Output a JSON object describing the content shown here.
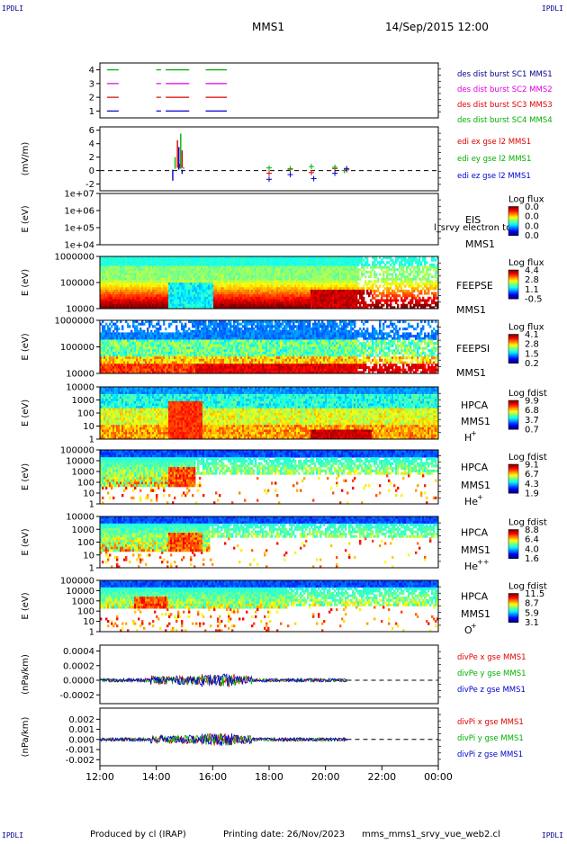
{
  "header": {
    "corner_label": "IPDLI",
    "spacecraft": "MMS1",
    "datetime": "14/Sep/2015 12:00"
  },
  "footer": {
    "produced_by": "Produced by cl (IRAP)",
    "printing_date": "Printing date: 26/Nov/2023",
    "script_name": "mms_mms1_srvy_vue_web2.cl"
  },
  "colors": {
    "red": "#e00000",
    "green": "#00b000",
    "magenta": "#e000e0",
    "blue": "#0000d0",
    "legend_dark_blue": "#00008b"
  },
  "chart_data": {
    "type": "multi-panel time series",
    "x_ticks": [
      "12:00",
      "14:00",
      "16:00",
      "18:00",
      "20:00",
      "22:00",
      "00:00"
    ],
    "xlim": [
      "12:00",
      "00:00"
    ],
    "panels": [
      {
        "id": "burst",
        "type": "timeline",
        "yticks": [
          "4",
          "3",
          "2",
          "1"
        ],
        "ylim": [
          0.5,
          4.5
        ],
        "series": [
          {
            "name": "des dist burst SC1 MMS1",
            "row": 1,
            "color_key": "blue",
            "intervals": [
              [
                "12:15",
                "12:40"
              ],
              [
                "14:00",
                "14:10"
              ],
              [
                "14:20",
                "15:10"
              ],
              [
                "15:45",
                "16:30"
              ]
            ]
          },
          {
            "name": "des dist burst SC2 MMS2",
            "row": 3,
            "color_key": "magenta",
            "intervals": [
              [
                "12:15",
                "12:40"
              ],
              [
                "14:00",
                "14:10"
              ],
              [
                "14:20",
                "15:10"
              ],
              [
                "15:45",
                "16:30"
              ]
            ]
          },
          {
            "name": "des dist burst SC3 MMS3",
            "row": 2,
            "color_key": "red",
            "intervals": [
              [
                "12:15",
                "12:40"
              ],
              [
                "14:00",
                "14:10"
              ],
              [
                "14:20",
                "15:10"
              ],
              [
                "15:45",
                "16:30"
              ]
            ]
          },
          {
            "name": "des dist burst SC4 MMS4",
            "row": 4,
            "color_key": "green",
            "intervals": [
              [
                "12:15",
                "12:40"
              ],
              [
                "14:00",
                "14:10"
              ],
              [
                "14:20",
                "15:10"
              ],
              [
                "15:45",
                "16:30"
              ]
            ]
          }
        ],
        "legend_order": [
          "des dist burst SC1 MMS1",
          "des dist burst SC2 MMS2",
          "des dist burst SC3 MMS3",
          "des dist burst SC4 MMS4"
        ],
        "legend_colors": [
          "legend_dark_blue",
          "magenta",
          "red",
          "green"
        ]
      },
      {
        "id": "edi",
        "type": "scatter",
        "ylabel": "(mV/m)",
        "yticks": [
          6,
          4,
          2,
          0,
          -2
        ],
        "ytick_labels": [
          "6",
          "4",
          "2",
          "0",
          "-2"
        ],
        "ylim": [
          -3,
          6.5
        ],
        "zero_line": true,
        "series": [
          {
            "name": "edi ex gse l2 MMS1",
            "color_key": "red",
            "points": [
              [
                "14:45",
                4.5
              ],
              [
                "14:50",
                1.0
              ],
              [
                "14:55",
                3.0
              ],
              [
                "18:00",
                -0.4
              ],
              [
                "18:45",
                0.2
              ],
              [
                "19:30",
                -0.3
              ],
              [
                "20:20",
                0.3
              ],
              [
                "20:45",
                0.1
              ]
            ]
          },
          {
            "name": "edi ey gse l2 MMS1",
            "color_key": "green",
            "points": [
              [
                "14:40",
                2.0
              ],
              [
                "14:52",
                5.5
              ],
              [
                "14:58",
                0.5
              ],
              [
                "18:00",
                0.4
              ],
              [
                "18:45",
                0.3
              ],
              [
                "19:30",
                0.6
              ],
              [
                "20:20",
                0.5
              ],
              [
                "20:40",
                0.0
              ]
            ]
          },
          {
            "name": "edi ez gse l2 MMS1",
            "color_key": "blue",
            "points": [
              [
                "14:35",
                -1.5
              ],
              [
                "14:48",
                3.5
              ],
              [
                "14:55",
                -0.5
              ],
              [
                "18:00",
                -1.3
              ],
              [
                "18:45",
                -0.6
              ],
              [
                "19:35",
                -1.2
              ],
              [
                "20:20",
                -0.4
              ],
              [
                "20:45",
                0.3
              ]
            ]
          }
        ]
      },
      {
        "id": "eis",
        "type": "heatmap",
        "ylabel": "E (eV)",
        "ytick_labels": [
          "1e+07",
          "1e+06",
          "1e+05",
          "1e+04"
        ],
        "label_lines": [
          "EIS",
          "MMS1"
        ],
        "overlay_text": "l_srvy electron to",
        "colorbar": {
          "title": "Log flux",
          "ticks": [
            "0.0",
            "0.0",
            "0.0",
            "0.0"
          ]
        }
      },
      {
        "id": "feepse",
        "type": "heatmap",
        "ylabel": "E (eV)",
        "ytick_labels": [
          "1000000",
          "100000",
          "10000"
        ],
        "label_lines": [
          "FEEPSE",
          "MMS1"
        ],
        "colorbar": {
          "title": "Log flux",
          "ticks": [
            "4.4",
            "2.8",
            "1.1",
            "-0.5"
          ]
        }
      },
      {
        "id": "feepsi",
        "type": "heatmap",
        "ylabel": "E (eV)",
        "ytick_labels": [
          "1000000",
          "100000",
          "10000"
        ],
        "label_lines": [
          "FEEPSI",
          "MMS1"
        ],
        "colorbar": {
          "title": "Log flux",
          "ticks": [
            "4.1",
            "2.8",
            "1.5",
            "0.2"
          ]
        }
      },
      {
        "id": "hpca_h",
        "type": "heatmap",
        "ylabel": "E (eV)",
        "ytick_labels": [
          "10000",
          "1000",
          "100",
          "10",
          "1"
        ],
        "label_lines": [
          "HPCA",
          "MMS1"
        ],
        "species": "H",
        "species_charge": "+",
        "colorbar": {
          "title": "Log fdist",
          "ticks": [
            "9.9",
            "6.8",
            "3.7",
            "0.7"
          ]
        }
      },
      {
        "id": "hpca_he1",
        "type": "heatmap",
        "ylabel": "E (eV)",
        "ytick_labels": [
          "100000",
          "10000",
          "1000",
          "100",
          "10",
          "1"
        ],
        "label_lines": [
          "HPCA",
          "MMS1"
        ],
        "species": "He",
        "species_charge": "+",
        "colorbar": {
          "title": "Log fdist",
          "ticks": [
            "9.1",
            "6.7",
            "4.3",
            "1.9"
          ]
        }
      },
      {
        "id": "hpca_he2",
        "type": "heatmap",
        "ylabel": "E (eV)",
        "ytick_labels": [
          "10000",
          "1000",
          "100",
          "10",
          "1"
        ],
        "label_lines": [
          "HPCA",
          "MMS1"
        ],
        "species": "He",
        "species_charge": "++",
        "colorbar": {
          "title": "Log fdist",
          "ticks": [
            "8.8",
            "6.4",
            "4.0",
            "1.6"
          ]
        }
      },
      {
        "id": "hpca_o",
        "type": "heatmap",
        "ylabel": "E (eV)",
        "ytick_labels": [
          "100000",
          "10000",
          "1000",
          "100",
          "10",
          "1"
        ],
        "label_lines": [
          "HPCA",
          "MMS1"
        ],
        "species": "O",
        "species_charge": "+",
        "colorbar": {
          "title": "Log fdist",
          "ticks": [
            "11.5",
            "8.7",
            "5.9",
            "3.1"
          ]
        }
      },
      {
        "id": "divpe",
        "type": "line",
        "ylabel": "(nPa/km)",
        "yticks": [
          0.0004,
          0.0002,
          0.0,
          -0.0002
        ],
        "ytick_labels": [
          "0.0004",
          "0.0002",
          "0.0000",
          "-0.0002"
        ],
        "ylim": [
          -0.00032,
          0.00048
        ],
        "zero_line": true,
        "series": [
          {
            "name": "divPe x gse MMS1",
            "color_key": "red"
          },
          {
            "name": "divPe y gse MMS1",
            "color_key": "green"
          },
          {
            "name": "divPe z gse MMS1",
            "color_key": "blue"
          }
        ]
      },
      {
        "id": "divpi",
        "type": "line",
        "ylabel": "(nPa/km)",
        "yticks": [
          0.002,
          0.001,
          0.0,
          -0.001,
          -0.002
        ],
        "ytick_labels": [
          "0.002",
          "0.001",
          "0.000",
          "-0.001",
          "-0.002"
        ],
        "ylim": [
          -0.0026,
          0.0031
        ],
        "zero_line": true,
        "series": [
          {
            "name": "divPi x gse MMS1",
            "color_key": "red"
          },
          {
            "name": "divPi y gse MMS1",
            "color_key": "green"
          },
          {
            "name": "divPi z gse MMS1",
            "color_key": "blue"
          }
        ]
      }
    ]
  }
}
